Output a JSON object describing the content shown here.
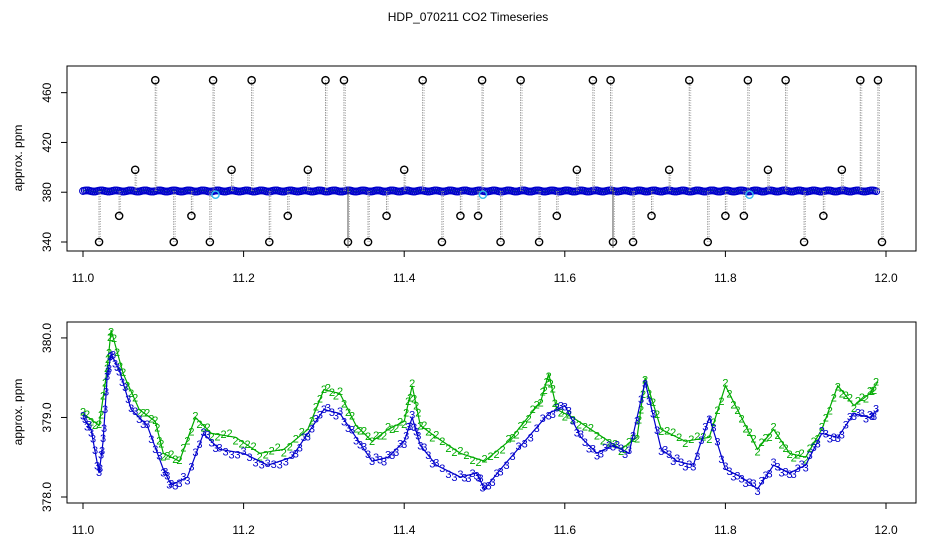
{
  "title": "HDP_070211  CO2 Timeseries",
  "colors": {
    "raw_line": "#9a9a9a",
    "raw_point": "#000000",
    "series_blue": "#0000cc",
    "series_cyan": "#33bbee",
    "series_green": "#00aa00"
  },
  "chart_data": [
    {
      "type": "scatter",
      "title": "HDP_070211  CO2 Timeseries",
      "xlabel": "",
      "ylabel": "approx. ppm",
      "xlim": [
        11.0,
        12.0
      ],
      "ylim": [
        340,
        475
      ],
      "xticks": [
        "11.0",
        "11.2",
        "11.4",
        "11.6",
        "11.8",
        "12.0"
      ],
      "yticks": [
        "340",
        "380",
        "420",
        "460"
      ],
      "grid": false,
      "baseline_ppm": 381,
      "spikes": [
        {
          "x": 11.02,
          "y": 340
        },
        {
          "x": 11.045,
          "y": 361
        },
        {
          "x": 11.065,
          "y": 398
        },
        {
          "x": 11.09,
          "y": 470
        },
        {
          "x": 11.113,
          "y": 340
        },
        {
          "x": 11.135,
          "y": 361
        },
        {
          "x": 11.158,
          "y": 340
        },
        {
          "x": 11.162,
          "y": 470
        },
        {
          "x": 11.185,
          "y": 398
        },
        {
          "x": 11.21,
          "y": 470
        },
        {
          "x": 11.232,
          "y": 340
        },
        {
          "x": 11.255,
          "y": 361
        },
        {
          "x": 11.28,
          "y": 398
        },
        {
          "x": 11.302,
          "y": 470
        },
        {
          "x": 11.325,
          "y": 470
        },
        {
          "x": 11.33,
          "y": 340
        },
        {
          "x": 11.355,
          "y": 340
        },
        {
          "x": 11.378,
          "y": 361
        },
        {
          "x": 11.4,
          "y": 398
        },
        {
          "x": 11.423,
          "y": 470
        },
        {
          "x": 11.447,
          "y": 340
        },
        {
          "x": 11.47,
          "y": 361
        },
        {
          "x": 11.492,
          "y": 361
        },
        {
          "x": 11.497,
          "y": 470
        },
        {
          "x": 11.52,
          "y": 340
        },
        {
          "x": 11.545,
          "y": 470
        },
        {
          "x": 11.568,
          "y": 340
        },
        {
          "x": 11.59,
          "y": 361
        },
        {
          "x": 11.615,
          "y": 398
        },
        {
          "x": 11.635,
          "y": 470
        },
        {
          "x": 11.657,
          "y": 470
        },
        {
          "x": 11.66,
          "y": 340
        },
        {
          "x": 11.685,
          "y": 340
        },
        {
          "x": 11.708,
          "y": 361
        },
        {
          "x": 11.73,
          "y": 398
        },
        {
          "x": 11.755,
          "y": 470
        },
        {
          "x": 11.778,
          "y": 340
        },
        {
          "x": 11.8,
          "y": 361
        },
        {
          "x": 11.823,
          "y": 361
        },
        {
          "x": 11.828,
          "y": 470
        },
        {
          "x": 11.853,
          "y": 398
        },
        {
          "x": 11.875,
          "y": 470
        },
        {
          "x": 11.898,
          "y": 340
        },
        {
          "x": 11.922,
          "y": 361
        },
        {
          "x": 11.945,
          "y": 398
        },
        {
          "x": 11.968,
          "y": 470
        },
        {
          "x": 11.99,
          "y": 470
        },
        {
          "x": 11.995,
          "y": 340
        }
      ],
      "cyan_points": [
        {
          "x": 11.165,
          "y": 378
        },
        {
          "x": 11.498,
          "y": 378
        },
        {
          "x": 11.83,
          "y": 378
        }
      ]
    },
    {
      "type": "line",
      "xlabel": "",
      "ylabel": "approx. ppm",
      "xlim": [
        11.0,
        12.0
      ],
      "ylim": [
        378.0,
        380.15
      ],
      "xticks": [
        "11.0",
        "11.2",
        "11.4",
        "11.6",
        "11.8",
        "12.0"
      ],
      "yticks": [
        "378.0",
        "379.0",
        "380.0"
      ],
      "grid": false,
      "series": [
        {
          "name": "2",
          "x": [
            11.0,
            11.02,
            11.03,
            11.035,
            11.05,
            11.07,
            11.09,
            11.1,
            11.12,
            11.14,
            11.16,
            11.19,
            11.22,
            11.25,
            11.28,
            11.3,
            11.32,
            11.34,
            11.36,
            11.38,
            11.4,
            11.41,
            11.42,
            11.44,
            11.47,
            11.5,
            11.53,
            11.55,
            11.57,
            11.58,
            11.59,
            11.61,
            11.64,
            11.67,
            11.69,
            11.7,
            11.72,
            11.75,
            11.78,
            11.8,
            11.82,
            11.84,
            11.86,
            11.88,
            11.9,
            11.92,
            11.94,
            11.96,
            11.98,
            11.99
          ],
          "values": [
            379.05,
            378.9,
            379.6,
            380.1,
            379.55,
            379.1,
            378.95,
            378.55,
            378.45,
            379.0,
            378.8,
            378.75,
            378.55,
            378.6,
            378.85,
            379.35,
            379.3,
            378.9,
            378.7,
            378.85,
            378.95,
            379.4,
            378.9,
            378.75,
            378.55,
            378.45,
            378.7,
            378.95,
            379.2,
            379.55,
            379.1,
            379.0,
            378.8,
            378.6,
            378.75,
            379.5,
            378.85,
            378.7,
            378.75,
            379.4,
            379.0,
            378.6,
            378.85,
            378.55,
            378.5,
            378.85,
            379.4,
            379.15,
            379.3,
            379.45
          ]
        },
        {
          "name": "3",
          "x": [
            11.0,
            11.01,
            11.02,
            11.025,
            11.03,
            11.035,
            11.045,
            11.06,
            11.08,
            11.1,
            11.11,
            11.13,
            11.15,
            11.17,
            11.2,
            11.23,
            11.26,
            11.28,
            11.3,
            11.32,
            11.34,
            11.36,
            11.38,
            11.4,
            11.41,
            11.42,
            11.44,
            11.47,
            11.49,
            11.5,
            11.52,
            11.55,
            11.58,
            11.6,
            11.62,
            11.64,
            11.66,
            11.68,
            11.7,
            11.72,
            11.74,
            11.76,
            11.78,
            11.8,
            11.82,
            11.84,
            11.86,
            11.88,
            11.9,
            11.92,
            11.94,
            11.96,
            11.98,
            11.99
          ],
          "values": [
            379.0,
            378.85,
            378.3,
            378.7,
            379.5,
            379.8,
            379.6,
            379.1,
            378.9,
            378.35,
            378.15,
            378.25,
            378.8,
            378.6,
            378.55,
            378.4,
            378.5,
            378.8,
            379.1,
            379.05,
            378.75,
            378.45,
            378.5,
            378.7,
            379.0,
            378.65,
            378.4,
            378.25,
            378.3,
            378.1,
            378.35,
            378.7,
            379.05,
            379.15,
            378.75,
            378.55,
            378.65,
            378.55,
            379.45,
            378.6,
            378.45,
            378.4,
            379.0,
            378.35,
            378.25,
            378.1,
            378.4,
            378.3,
            378.4,
            378.8,
            378.75,
            379.05,
            379.0,
            379.1
          ]
        }
      ]
    }
  ]
}
